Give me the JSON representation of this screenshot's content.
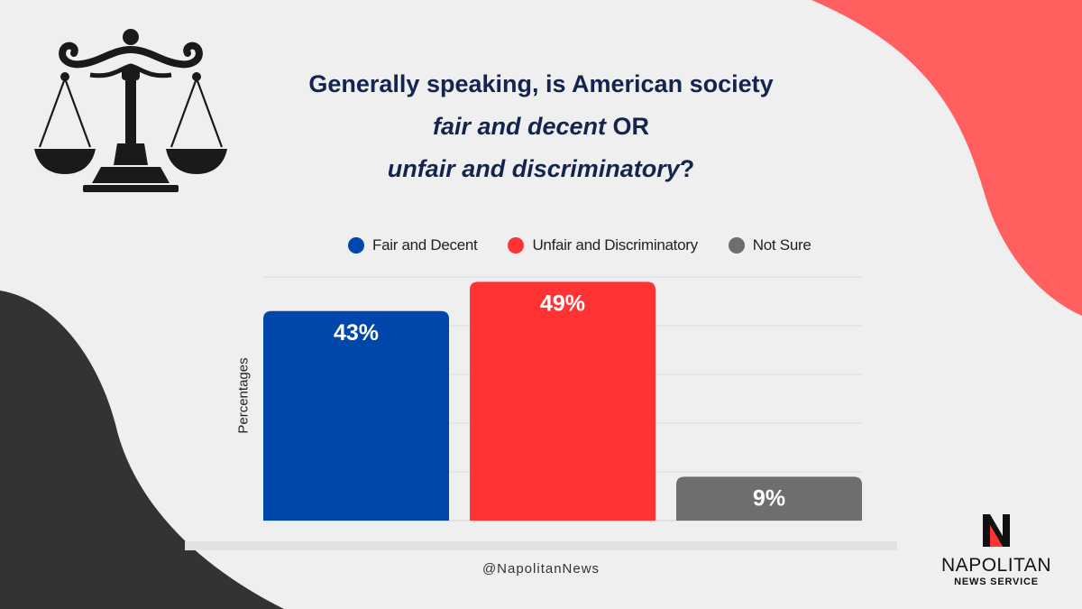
{
  "title": {
    "line1": "Generally speaking, is American society",
    "line2_em": "fair and decent",
    "line2_rest": " OR",
    "line3_em": "unfair and discriminatory",
    "line3_rest": "?"
  },
  "colors": {
    "fair": "#0047ab",
    "unfair": "#ff3333",
    "not_sure": "#6e6e6e",
    "coral": "#ff5f5f",
    "dark": "#333333",
    "title": "#13244f"
  },
  "chart_data": {
    "type": "bar",
    "title": "Generally speaking, is American society fair and decent OR unfair and discriminatory?",
    "categories": [
      "Fair and Decent",
      "Unfair and Discriminatory",
      "Not Sure"
    ],
    "values": [
      43,
      49,
      9
    ],
    "value_labels": [
      "43%",
      "49%",
      "9%"
    ],
    "legend": [
      "Fair and Decent",
      "Unfair and Discriminatory",
      "Not Sure"
    ],
    "legend_position": "top",
    "xlabel": "",
    "ylabel": "Percentages",
    "ylim": [
      0,
      50
    ],
    "grid": true
  },
  "footer": {
    "handle": "@NapolitanNews"
  },
  "brand": {
    "letter": "N",
    "name": "NAPOLITAN",
    "sub": "NEWS SERVICE"
  }
}
